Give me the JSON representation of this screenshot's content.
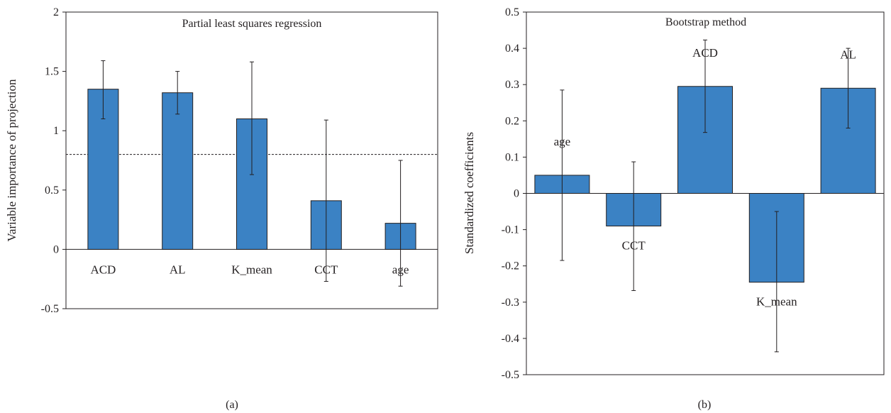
{
  "chart_data": [
    {
      "type": "bar",
      "title": "Partial least squares regression",
      "ylabel": "Variable importance of projection",
      "xlabel": "",
      "subfigure_label": "(a)",
      "categories": [
        "ACD",
        "AL",
        "K_mean",
        "CCT",
        "age"
      ],
      "values": [
        1.35,
        1.32,
        1.1,
        0.41,
        0.22
      ],
      "error_upper": [
        1.59,
        1.5,
        1.58,
        1.09,
        0.75
      ],
      "error_lower": [
        1.1,
        1.14,
        0.63,
        -0.27,
        -0.31
      ],
      "reference_line": 0.8,
      "ylim": [
        -0.5,
        2
      ],
      "yticks": [
        -0.5,
        0,
        0.5,
        1,
        1.5,
        2
      ],
      "ytick_labels": [
        "-0.5",
        "0",
        "0.5",
        "1",
        "1.5",
        "2"
      ],
      "bar_color": "#3b82c4",
      "category_labels_position": "below-zero-line",
      "grid": false
    },
    {
      "type": "bar",
      "title": "Bootstrap method",
      "ylabel": "Standardized coefficients",
      "xlabel": "",
      "subfigure_label": "(b)",
      "categories": [
        "age",
        "CCT",
        "ACD",
        "K_mean",
        "AL"
      ],
      "values": [
        0.05,
        -0.09,
        0.295,
        -0.245,
        0.29
      ],
      "error_upper": [
        0.285,
        0.087,
        0.423,
        -0.05,
        0.4
      ],
      "error_lower": [
        -0.185,
        -0.268,
        0.168,
        -0.437,
        0.18
      ],
      "ylim": [
        -0.5,
        0.5
      ],
      "yticks": [
        -0.5,
        -0.4,
        -0.3,
        -0.2,
        -0.1,
        0,
        0.1,
        0.2,
        0.3,
        0.4,
        0.5
      ],
      "ytick_labels": [
        "-0.5",
        "-0.4",
        "-0.3",
        "-0.2",
        "-0.1",
        "0",
        "0.1",
        "0.2",
        "0.3",
        "0.4",
        "0.5"
      ],
      "bar_color": "#3b82c4",
      "category_labels_position": "beside-bar",
      "grid": false
    }
  ]
}
